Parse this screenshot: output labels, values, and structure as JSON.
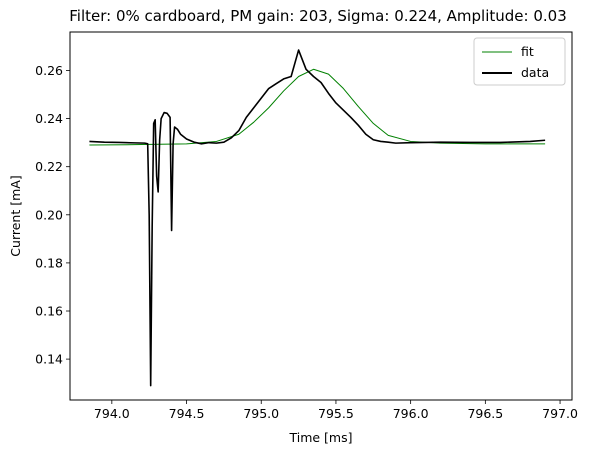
{
  "chart_data": {
    "type": "line",
    "title": "Filter: 0% cardboard, PM gain: 203, Sigma: 0.224, Amplitude: 0.03",
    "xlabel": "Time [ms]",
    "ylabel": "Current [mA]",
    "xlim": [
      793.72,
      797.08
    ],
    "ylim": [
      0.123,
      0.276
    ],
    "xticks": [
      794.0,
      794.5,
      795.0,
      795.5,
      796.0,
      796.5,
      797.0
    ],
    "xtick_labels": [
      "794.0",
      "794.5",
      "795.0",
      "795.5",
      "796.0",
      "796.5",
      "797.0"
    ],
    "yticks": [
      0.14,
      0.16,
      0.18,
      0.2,
      0.22,
      0.24,
      0.26
    ],
    "ytick_labels": [
      "0.14",
      "0.16",
      "0.18",
      "0.20",
      "0.22",
      "0.24",
      "0.26"
    ],
    "grid": false,
    "legend_position": "top-right",
    "series": [
      {
        "name": "fit",
        "color": "#008000",
        "x": [
          793.85,
          794.2,
          794.5,
          794.7,
          794.85,
          794.95,
          795.05,
          795.15,
          795.25,
          795.35,
          795.45,
          795.55,
          795.65,
          795.75,
          795.85,
          796.0,
          796.2,
          796.5,
          796.9
        ],
        "y": [
          0.229,
          0.2292,
          0.2295,
          0.2305,
          0.2335,
          0.2385,
          0.2445,
          0.2515,
          0.2575,
          0.2605,
          0.2585,
          0.2525,
          0.245,
          0.238,
          0.233,
          0.2305,
          0.2298,
          0.2295,
          0.2295
        ]
      },
      {
        "name": "data",
        "color": "#000000",
        "x": [
          793.85,
          793.95,
          794.05,
          794.15,
          794.22,
          794.24,
          794.25,
          794.26,
          794.27,
          794.28,
          794.29,
          794.3,
          794.31,
          794.32,
          794.33,
          794.35,
          794.37,
          794.39,
          794.4,
          794.41,
          794.42,
          794.44,
          794.46,
          794.5,
          794.55,
          794.6,
          794.65,
          794.7,
          794.75,
          794.8,
          794.85,
          794.9,
          794.95,
          795.0,
          795.05,
          795.1,
          795.15,
          795.2,
          795.25,
          795.3,
          795.35,
          795.4,
          795.45,
          795.5,
          795.55,
          795.6,
          795.65,
          795.7,
          795.75,
          795.8,
          795.85,
          795.9,
          796.0,
          796.2,
          796.4,
          796.6,
          796.8,
          796.9
        ],
        "y": [
          0.2305,
          0.2302,
          0.2301,
          0.2299,
          0.2298,
          0.2295,
          0.2,
          0.129,
          0.195,
          0.238,
          0.2395,
          0.216,
          0.2095,
          0.231,
          0.24,
          0.2425,
          0.2422,
          0.2405,
          0.1935,
          0.2295,
          0.2365,
          0.2355,
          0.2335,
          0.2315,
          0.2302,
          0.2295,
          0.23,
          0.2298,
          0.2302,
          0.232,
          0.235,
          0.2405,
          0.2445,
          0.2485,
          0.2525,
          0.2545,
          0.2565,
          0.2575,
          0.2685,
          0.2605,
          0.2575,
          0.255,
          0.2505,
          0.2465,
          0.2435,
          0.2405,
          0.2372,
          0.2335,
          0.2312,
          0.2305,
          0.2302,
          0.2298,
          0.23,
          0.2302,
          0.2301,
          0.2301,
          0.2305,
          0.231
        ]
      }
    ]
  }
}
